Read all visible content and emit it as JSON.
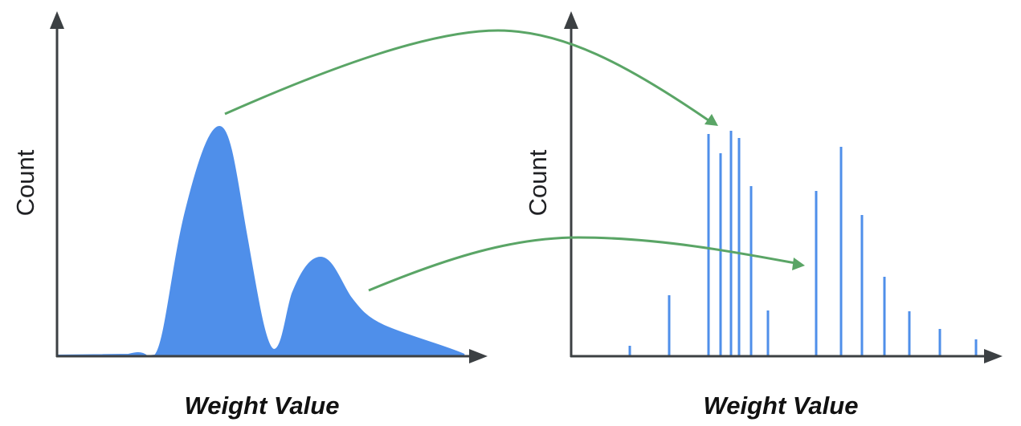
{
  "left_panel": {
    "y_axis_label": "Count",
    "x_axis_label": "Weight Value"
  },
  "right_panel": {
    "y_axis_label": "Count",
    "x_axis_label": "Weight Value"
  },
  "colors": {
    "distribution": "#4f8fea",
    "arrows": "#5aa566",
    "axes": "#3c4043"
  }
}
